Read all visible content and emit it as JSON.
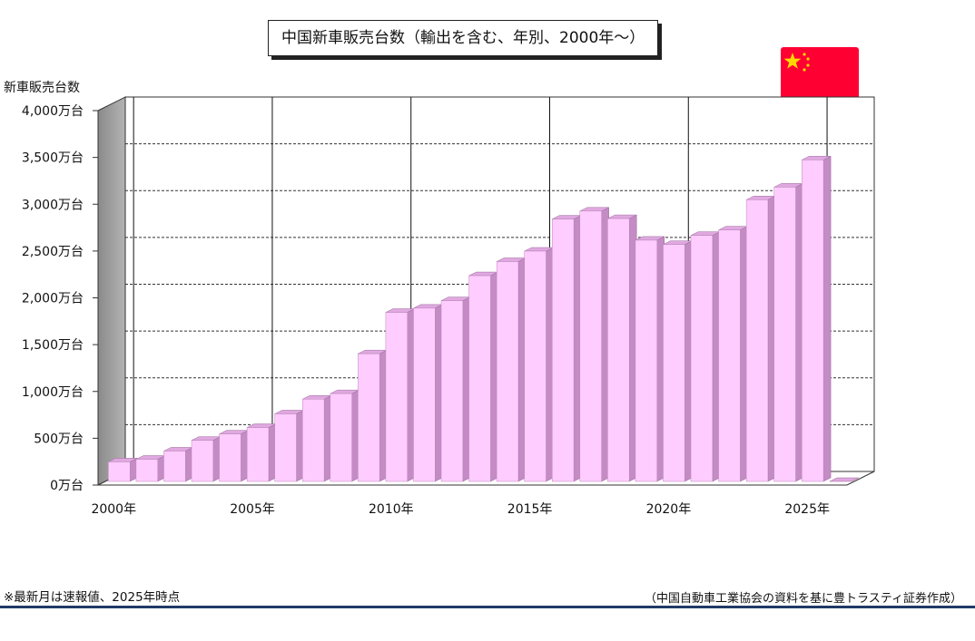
{
  "title": "中国新車販売台数（輸出を含む、年別、2000年～）",
  "chart_data": {
    "type": "bar",
    "title": "中国新車販売台数（輸出を含む、年別、2000年～）",
    "ylabel": "新車販売台数",
    "xlabel": "",
    "ylim": [
      0,
      4000
    ],
    "yticks": [
      0,
      500,
      1000,
      1500,
      2000,
      2500,
      3000,
      3500,
      4000
    ],
    "ytick_labels": [
      "0万台",
      "500万台",
      "1,000万台",
      "1,500万台",
      "2,000万台",
      "2,500万台",
      "3,000万台",
      "3,500万台",
      "4,000万台"
    ],
    "x_tick_labels": [
      "2000年",
      "2005年",
      "2010年",
      "2015年",
      "2020年",
      "2025年"
    ],
    "categories": [
      "2000",
      "2001",
      "2002",
      "2003",
      "2004",
      "2005",
      "2006",
      "2007",
      "2008",
      "2009",
      "2010",
      "2011",
      "2012",
      "2013",
      "2014",
      "2015",
      "2016",
      "2017",
      "2018",
      "2019",
      "2020",
      "2021",
      "2022",
      "2023",
      "2024",
      "2025",
      "2026"
    ],
    "values": [
      209,
      237,
      325,
      439,
      507,
      576,
      722,
      879,
      938,
      1364,
      1806,
      1851,
      1931,
      2198,
      2349,
      2460,
      2803,
      2888,
      2808,
      2577,
      2531,
      2628,
      2686,
      3009,
      3144,
      3435,
      0
    ],
    "grid": true,
    "bar_color": "#ffccff"
  },
  "flag": {
    "name": "china-flag-icon",
    "red": "#ff0033",
    "star": "#ffd700"
  },
  "footnote_left": "※最新月は速報値、2025年時点",
  "footnote_right": "（中国自動車工業協会の資料を基に豊トラスティ証券作成）"
}
